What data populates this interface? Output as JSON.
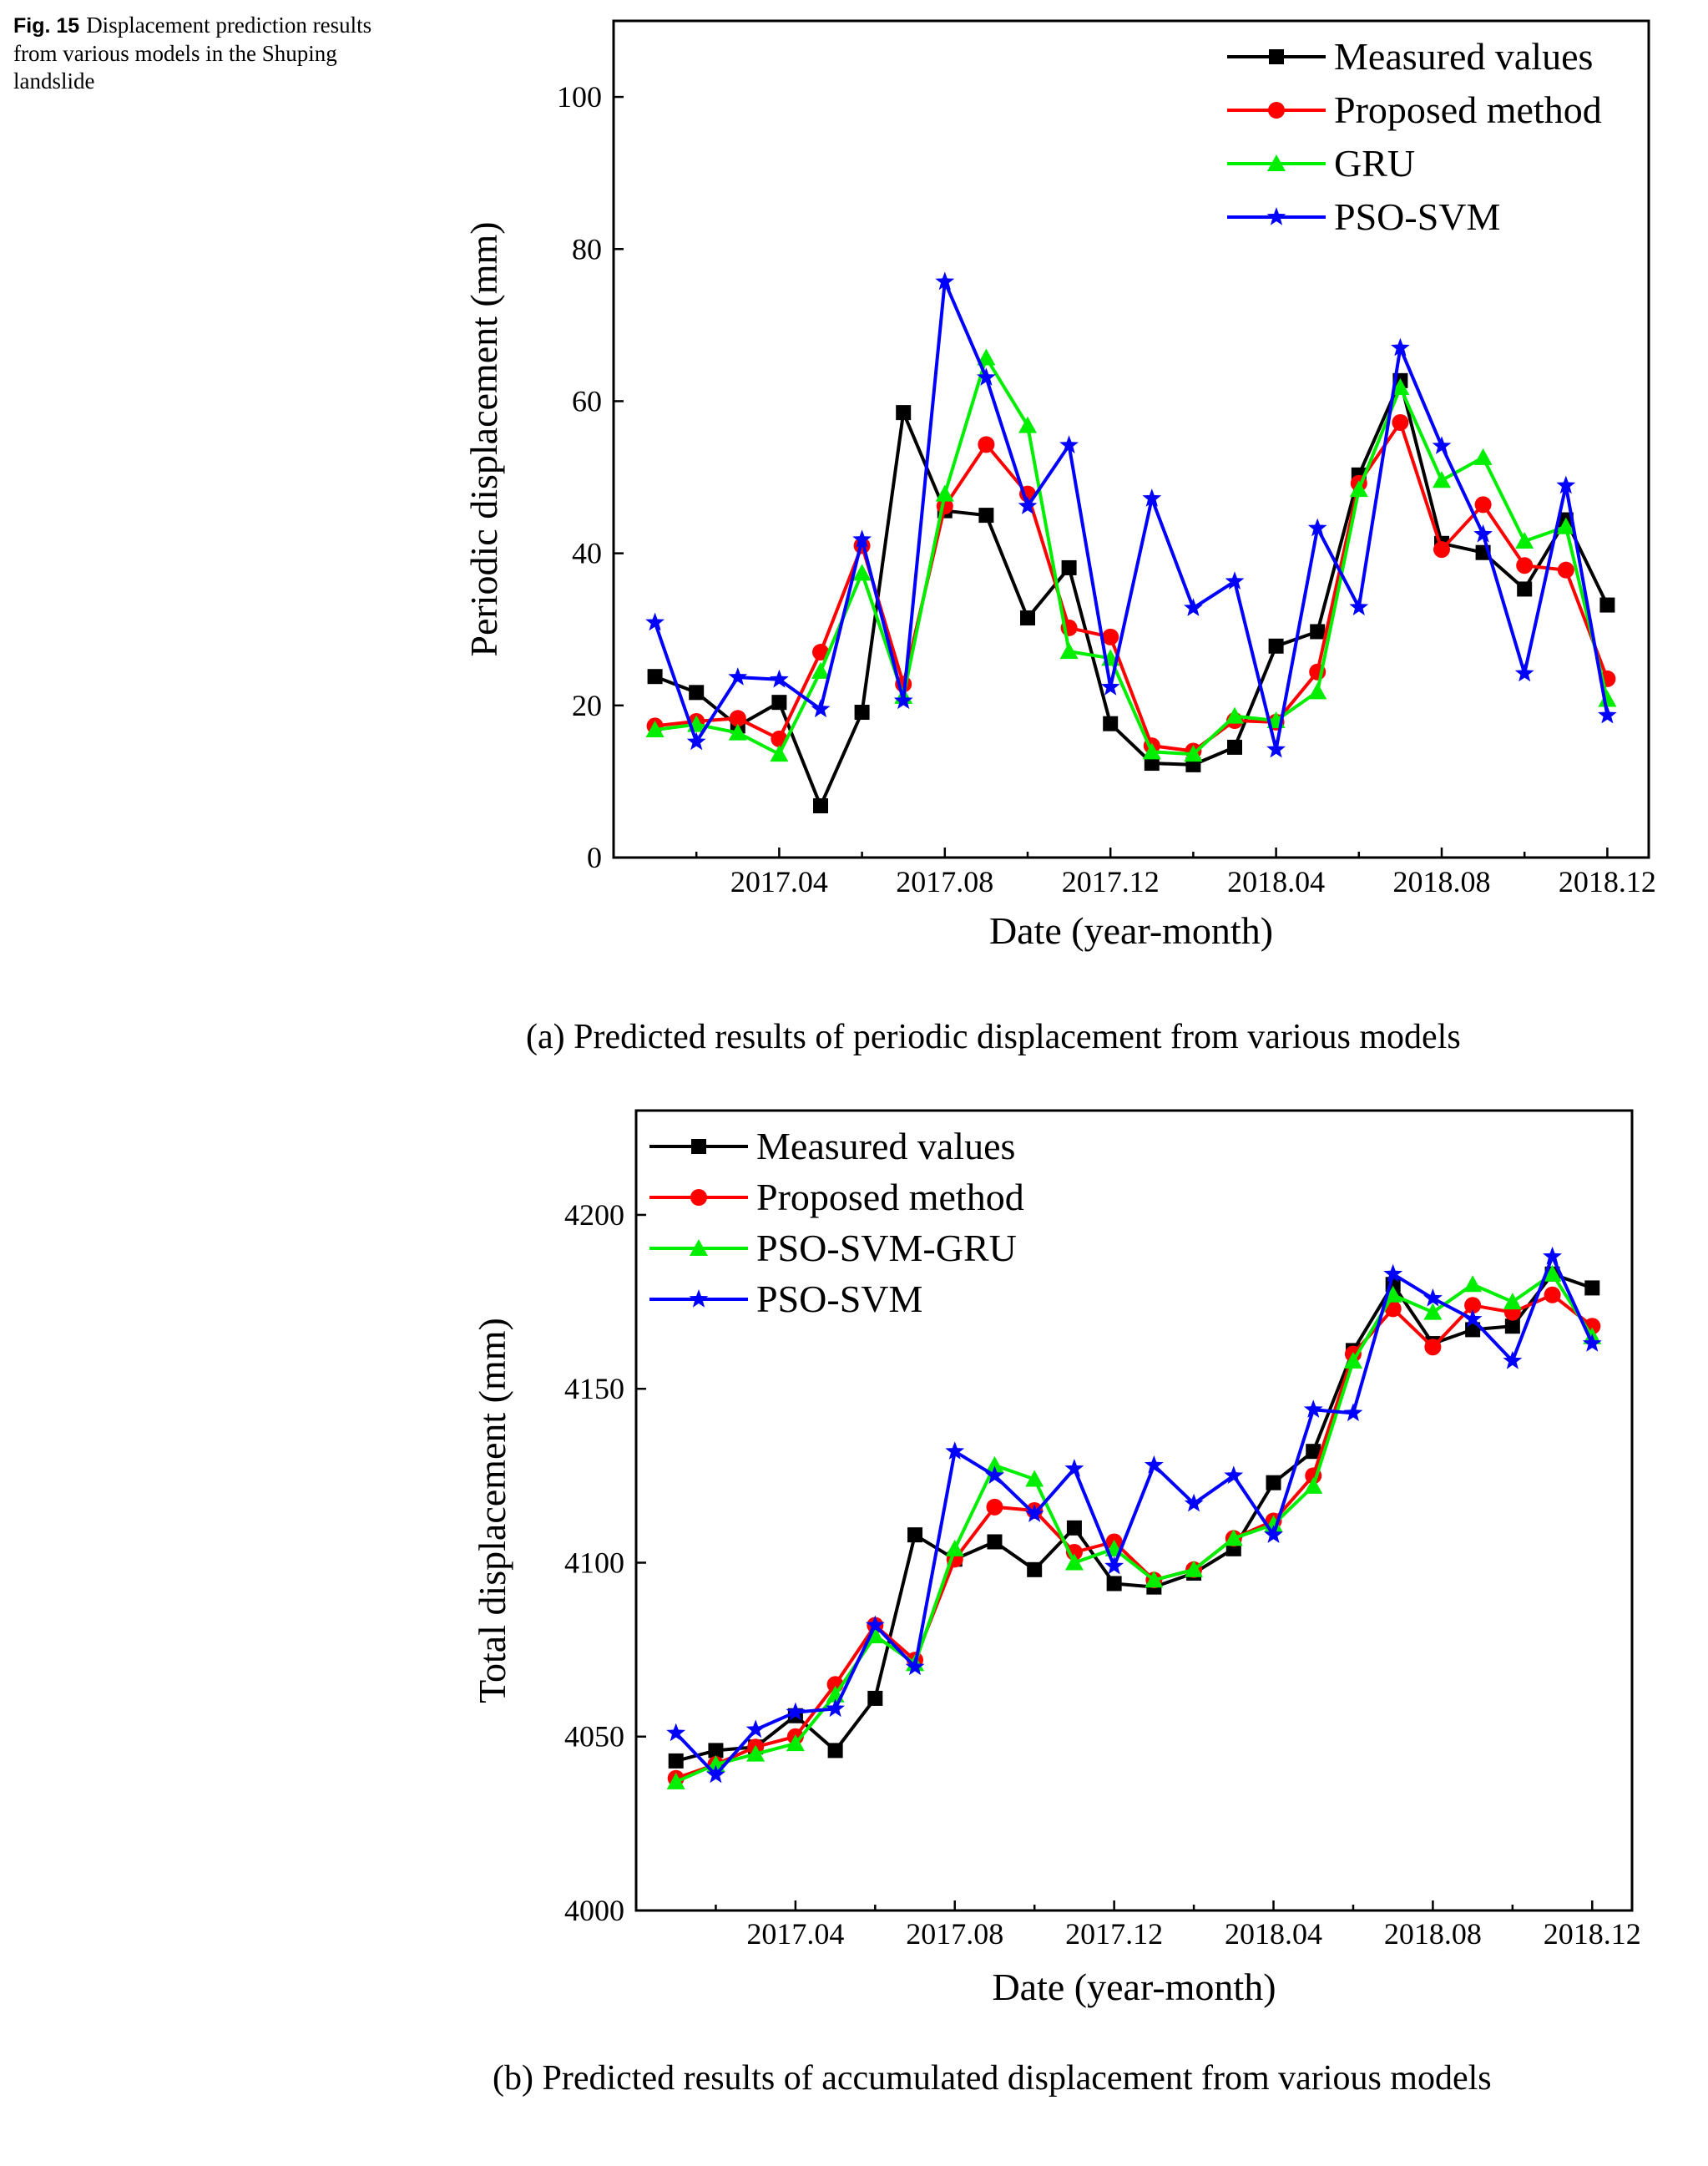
{
  "caption": {
    "label": "Fig. 15",
    "text": "Displacement prediction results from various models in the Shuping landslide"
  },
  "chart_data": [
    {
      "type": "line",
      "panel_caption": "(a)    Predicted results of periodic displacement from various models",
      "ylabel": "Periodic displacement (mm)",
      "xlabel": "Date (year-month)",
      "ylim": [
        0,
        110
      ],
      "yticks": [
        0,
        20,
        40,
        60,
        80,
        100
      ],
      "xlim": [
        0,
        25
      ],
      "xticks": [
        {
          "x": 4,
          "label": "2017.04"
        },
        {
          "x": 8,
          "label": "2017.08"
        },
        {
          "x": 12,
          "label": "2017.12"
        },
        {
          "x": 16,
          "label": "2018.04"
        },
        {
          "x": 20,
          "label": "2018.08"
        },
        {
          "x": 24,
          "label": "2018.12"
        }
      ],
      "x": [
        1,
        2,
        3,
        4,
        5,
        6,
        7,
        8,
        9,
        10,
        11,
        12,
        13,
        14,
        15,
        16,
        17,
        18,
        19,
        20,
        21,
        22,
        23,
        24
      ],
      "legend_position": "top-right",
      "series": [
        {
          "name": "Measured values",
          "color": "#000000",
          "marker": "square",
          "values": [
            23.8,
            21.7,
            17.3,
            20.4,
            6.8,
            19.1,
            58.5,
            45.6,
            45.0,
            31.5,
            38.1,
            17.6,
            12.4,
            12.2,
            14.5,
            27.8,
            29.7,
            50.3,
            62.7,
            41.3,
            40.1,
            35.3,
            44.4,
            33.2
          ]
        },
        {
          "name": "Proposed method",
          "color": "#ff0000",
          "marker": "circle",
          "values": [
            17.3,
            17.9,
            18.3,
            15.6,
            27.0,
            41.0,
            22.8,
            46.2,
            54.3,
            47.8,
            30.2,
            29.0,
            14.7,
            14.0,
            18.0,
            17.8,
            24.4,
            49.2,
            57.2,
            40.5,
            46.4,
            38.4,
            37.8,
            23.5
          ]
        },
        {
          "name": "GRU",
          "color": "#00ee00",
          "marker": "triangle",
          "values": [
            16.8,
            17.5,
            16.4,
            13.6,
            24.5,
            37.4,
            21.2,
            47.8,
            65.7,
            56.8,
            27.1,
            26.2,
            13.9,
            13.6,
            18.6,
            18.0,
            21.8,
            48.4,
            61.8,
            49.6,
            52.6,
            41.6,
            43.5,
            20.8
          ]
        },
        {
          "name": "PSO-SVM",
          "color": "#0000ff",
          "marker": "star",
          "values": [
            30.9,
            15.2,
            23.7,
            23.4,
            19.5,
            41.8,
            20.6,
            75.7,
            63.1,
            46.2,
            54.2,
            22.4,
            47.2,
            32.8,
            36.3,
            14.2,
            43.3,
            32.9,
            67.0,
            54.1,
            42.5,
            24.2,
            48.9,
            18.7
          ]
        }
      ]
    },
    {
      "type": "line",
      "panel_caption": "(b)    Predicted results of accumulated displacement from various models",
      "ylabel": "Total displacement (mm)",
      "xlabel": "Date (year-month)",
      "ylim": [
        4000,
        4230
      ],
      "yticks": [
        4000,
        4050,
        4100,
        4150,
        4200
      ],
      "xlim": [
        0,
        25
      ],
      "xticks": [
        {
          "x": 4,
          "label": "2017.04"
        },
        {
          "x": 8,
          "label": "2017.08"
        },
        {
          "x": 12,
          "label": "2017.12"
        },
        {
          "x": 16,
          "label": "2018.04"
        },
        {
          "x": 20,
          "label": "2018.08"
        },
        {
          "x": 24,
          "label": "2018.12"
        }
      ],
      "x": [
        1,
        2,
        3,
        4,
        5,
        6,
        7,
        8,
        9,
        10,
        11,
        12,
        13,
        14,
        15,
        16,
        17,
        18,
        19,
        20,
        21,
        22,
        23,
        24
      ],
      "legend_position": "top-left",
      "series": [
        {
          "name": "Measured values",
          "color": "#000000",
          "marker": "square",
          "values": [
            4043,
            4046,
            4047,
            4056,
            4046,
            4061,
            4108,
            4101,
            4106,
            4098,
            4110,
            4094,
            4093,
            4097,
            4104,
            4123,
            4132,
            4161,
            4180,
            4163,
            4167,
            4168,
            4183,
            4179
          ]
        },
        {
          "name": "Proposed method",
          "color": "#ff0000",
          "marker": "circle",
          "values": [
            4038,
            4042,
            4047,
            4050,
            4065,
            4082,
            4072,
            4101,
            4116,
            4115,
            4103,
            4106,
            4095,
            4098,
            4107,
            4112,
            4125,
            4160,
            4173,
            4162,
            4174,
            4172,
            4177,
            4168
          ]
        },
        {
          "name": "PSO-SVM-GRU",
          "color": "#00ee00",
          "marker": "triangle",
          "values": [
            4037,
            4042,
            4045,
            4048,
            4062,
            4079,
            4071,
            4104,
            4128,
            4124,
            4100,
            4104,
            4095,
            4098,
            4107,
            4111,
            4122,
            4158,
            4177,
            4172,
            4180,
            4175,
            4183,
            4165
          ]
        },
        {
          "name": "PSO-SVM",
          "color": "#0000ff",
          "marker": "star",
          "values": [
            4051,
            4039,
            4052,
            4057,
            4058,
            4082,
            4070,
            4132,
            4125,
            4114,
            4127,
            4099,
            4128,
            4117,
            4125,
            4108,
            4144,
            4143,
            4183,
            4176,
            4170,
            4158,
            4188,
            4163
          ]
        }
      ]
    }
  ]
}
